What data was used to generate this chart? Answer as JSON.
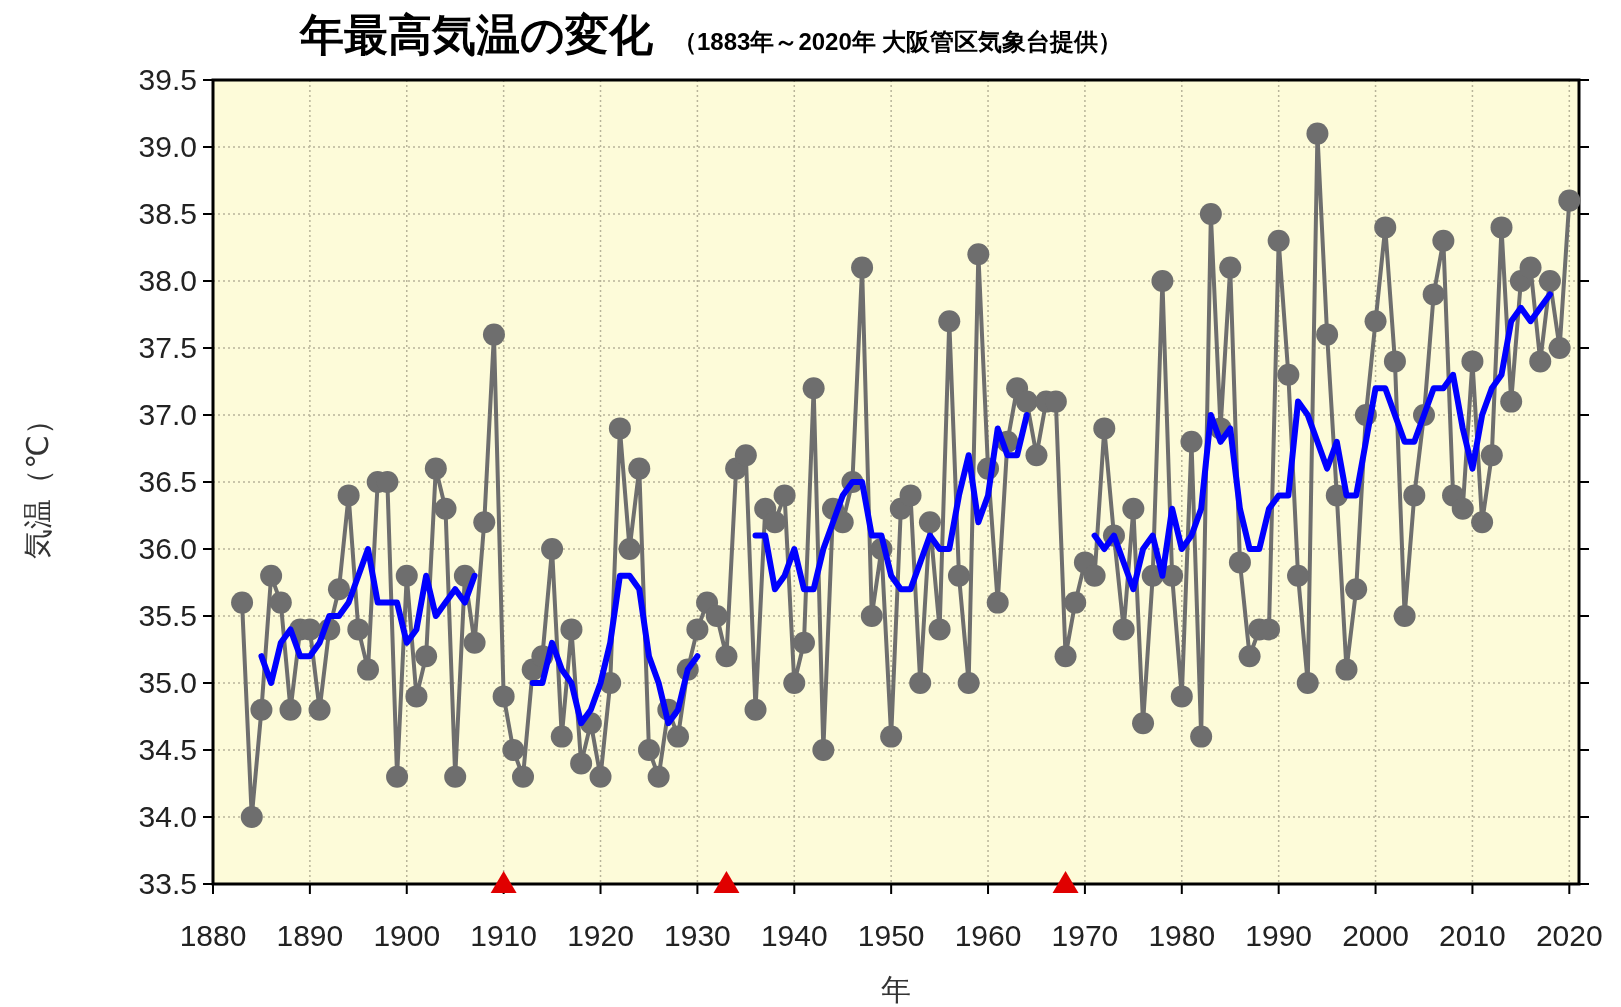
{
  "chart_data": {
    "type": "line",
    "title": "年最高気温の変化",
    "subtitle": "（1883年～2020年 大阪管区気象台提供）",
    "xlabel": "年",
    "ylabel": "気温（℃）",
    "xlim": [
      1880,
      2021
    ],
    "ylim": [
      33.5,
      39.5
    ],
    "xticks": [
      1880,
      1890,
      1900,
      1910,
      1920,
      1930,
      1940,
      1950,
      1960,
      1970,
      1980,
      1990,
      2000,
      2010,
      2020
    ],
    "yticks": [
      33.5,
      {
        "value": 34,
        "label": "34.0"
      },
      34.5,
      {
        "value": 35,
        "label": "35.0"
      },
      35.5,
      {
        "value": 36,
        "label": "36.0"
      },
      36.5,
      {
        "value": 37,
        "label": "37.0"
      },
      37.5,
      {
        "value": 38,
        "label": "38.0"
      },
      38.5,
      {
        "value": 39,
        "label": "39.0"
      },
      39.5
    ],
    "grid": true,
    "series": [
      {
        "color": "#6e6e6e",
        "marker": "circle",
        "x": [
          1883,
          1884,
          1885,
          1886,
          1887,
          1888,
          1889,
          1890,
          1891,
          1892,
          1893,
          1894,
          1895,
          1896,
          1897,
          1898,
          1899,
          1900,
          1901,
          1902,
          1903,
          1904,
          1905,
          1906,
          1907,
          1908,
          1909,
          1910,
          1911,
          1912,
          1913,
          1914,
          1915,
          1916,
          1917,
          1918,
          1919,
          1920,
          1921,
          1922,
          1923,
          1924,
          1925,
          1926,
          1927,
          1928,
          1929,
          1930,
          1931,
          1932,
          1933,
          1934,
          1935,
          1936,
          1937,
          1938,
          1939,
          1940,
          1941,
          1942,
          1943,
          1944,
          1945,
          1946,
          1947,
          1948,
          1949,
          1950,
          1951,
          1952,
          1953,
          1954,
          1955,
          1956,
          1957,
          1958,
          1959,
          1960,
          1961,
          1962,
          1963,
          1964,
          1965,
          1966,
          1967,
          1968,
          1969,
          1970,
          1971,
          1972,
          1973,
          1974,
          1975,
          1976,
          1977,
          1978,
          1979,
          1980,
          1981,
          1982,
          1983,
          1984,
          1985,
          1986,
          1987,
          1988,
          1989,
          1990,
          1991,
          1992,
          1993,
          1994,
          1995,
          1996,
          1997,
          1998,
          1999,
          2000,
          2001,
          2002,
          2003,
          2004,
          2005,
          2006,
          2007,
          2008,
          2009,
          2010,
          2011,
          2012,
          2013,
          2014,
          2015,
          2016,
          2017,
          2018,
          2019,
          2020
        ],
        "values": [
          35.6,
          34.0,
          34.8,
          35.8,
          35.6,
          34.8,
          35.4,
          35.4,
          34.8,
          35.4,
          35.7,
          36.4,
          35.4,
          35.1,
          36.5,
          36.5,
          34.3,
          35.8,
          34.9,
          35.2,
          36.6,
          36.3,
          34.3,
          35.8,
          35.3,
          36.2,
          37.6,
          34.9,
          34.5,
          34.3,
          35.1,
          35.2,
          36.0,
          34.6,
          35.4,
          34.4,
          34.7,
          34.3,
          35.0,
          36.9,
          36.0,
          36.6,
          34.5,
          34.3,
          34.8,
          34.6,
          35.1,
          35.4,
          35.6,
          35.5,
          35.2,
          36.6,
          36.7,
          34.8,
          36.3,
          36.2,
          36.4,
          35.0,
          35.3,
          37.2,
          34.5,
          36.3,
          36.2,
          36.5,
          38.1,
          35.5,
          36.0,
          34.6,
          36.3,
          36.4,
          35.0,
          36.2,
          35.4,
          37.7,
          35.8,
          35.0,
          38.2,
          36.6,
          35.6,
          36.8,
          37.2,
          37.1,
          36.7,
          37.1,
          37.1,
          35.2,
          35.6,
          35.9,
          35.8,
          36.9,
          36.1,
          35.4,
          36.3,
          34.7,
          35.8,
          38.0,
          35.8,
          34.9,
          36.8,
          34.6,
          38.5,
          36.9,
          38.1,
          35.9,
          35.2,
          35.4,
          35.4,
          38.3,
          37.3,
          35.8,
          35.0,
          39.1,
          37.6,
          36.4,
          35.1,
          35.7,
          37.0,
          37.7,
          38.4,
          37.4,
          35.5,
          36.4,
          37.0,
          37.9,
          38.3,
          36.4,
          36.3,
          37.4,
          36.2,
          36.7,
          38.4,
          37.1,
          38.0,
          38.1,
          37.4,
          38.0,
          37.5,
          38.6
        ]
      },
      {
        "color": "#0000ff",
        "marker": "none",
        "x": [
          1885,
          1886,
          1887,
          1888,
          1889,
          1890,
          1891,
          1892,
          1893,
          1894,
          1895,
          1896,
          1897,
          1898,
          1899,
          1900,
          1901,
          1902,
          1903,
          1904,
          1905,
          1906,
          1907
        ],
        "values": [
          35.2,
          35.0,
          35.3,
          35.4,
          35.2,
          35.2,
          35.3,
          35.5,
          35.5,
          35.6,
          35.8,
          36.0,
          35.6,
          35.6,
          35.6,
          35.3,
          35.4,
          35.8,
          35.5,
          35.6,
          35.7,
          35.6,
          35.8
        ]
      },
      {
        "color": "#0000ff",
        "marker": "none",
        "x": [
          1913,
          1914,
          1915,
          1916,
          1917,
          1918,
          1919,
          1920,
          1921,
          1922,
          1923,
          1924,
          1925,
          1926,
          1927,
          1928,
          1929,
          1930
        ],
        "values": [
          35.0,
          35.0,
          35.3,
          35.1,
          35.0,
          34.7,
          34.8,
          35.0,
          35.3,
          35.8,
          35.8,
          35.7,
          35.2,
          35.0,
          34.7,
          34.8,
          35.1,
          35.2
        ]
      },
      {
        "color": "#0000ff",
        "marker": "none",
        "x": [
          1936,
          1937,
          1938,
          1939,
          1940,
          1941,
          1942,
          1943,
          1944,
          1945,
          1946,
          1947,
          1948,
          1949,
          1950,
          1951,
          1952,
          1953,
          1954,
          1955,
          1956,
          1957,
          1958,
          1959,
          1960,
          1961,
          1962,
          1963,
          1964
        ],
        "values": [
          36.1,
          36.1,
          35.7,
          35.8,
          36.0,
          35.7,
          35.7,
          36.0,
          36.2,
          36.4,
          36.5,
          36.5,
          36.1,
          36.1,
          35.8,
          35.7,
          35.7,
          35.9,
          36.1,
          36.0,
          36.0,
          36.4,
          36.7,
          36.2,
          36.4,
          36.9,
          36.7,
          36.7,
          37.0
        ]
      },
      {
        "color": "#0000ff",
        "marker": "none",
        "x": [
          1971,
          1972,
          1973,
          1974,
          1975,
          1976,
          1977,
          1978,
          1979,
          1980,
          1981,
          1982,
          1983,
          1984,
          1985,
          1986,
          1987,
          1988,
          1989,
          1990,
          1991,
          1992,
          1993,
          1994,
          1995,
          1996,
          1997,
          1998,
          1999,
          2000,
          2001,
          2002,
          2003,
          2004,
          2005,
          2006,
          2007,
          2008,
          2009,
          2010,
          2011,
          2012,
          2013,
          2014,
          2015,
          2016,
          2017,
          2018
        ],
        "values": [
          36.1,
          36.0,
          36.1,
          35.9,
          35.7,
          36.0,
          36.1,
          35.8,
          36.3,
          36.0,
          36.1,
          36.3,
          37.0,
          36.8,
          36.9,
          36.3,
          36.0,
          36.0,
          36.3,
          36.4,
          36.4,
          37.1,
          37.0,
          36.8,
          36.6,
          36.8,
          36.4,
          36.4,
          36.8,
          37.2,
          37.2,
          37.0,
          36.8,
          36.8,
          37.0,
          37.2,
          37.2,
          37.3,
          36.9,
          36.6,
          37.0,
          37.2,
          37.3,
          37.7,
          37.8,
          37.7,
          37.8,
          37.9
        ]
      },
      {
        "type": "scatter",
        "color": "#e00000",
        "marker": "triangle",
        "x": [
          1910,
          1933,
          1968
        ],
        "values": [
          33.5,
          33.5,
          33.5
        ]
      }
    ]
  }
}
